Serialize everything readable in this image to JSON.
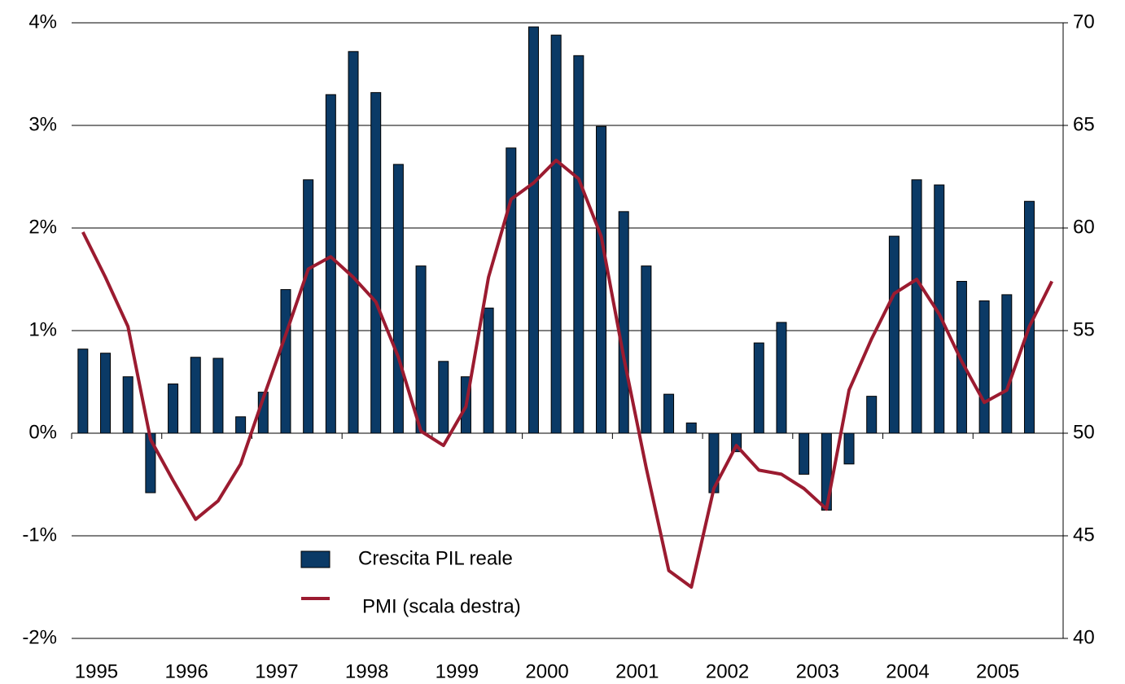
{
  "chart_data": {
    "type": "bar",
    "categories": [
      "1995",
      null,
      null,
      null,
      "1996",
      null,
      null,
      null,
      "1997",
      null,
      null,
      null,
      "1998",
      null,
      null,
      null,
      "1999",
      null,
      null,
      null,
      "2000",
      null,
      null,
      null,
      "2001",
      null,
      null,
      null,
      "2002",
      null,
      null,
      null,
      "2003",
      null,
      null,
      null,
      "2004",
      null,
      null,
      null,
      "2005",
      null,
      null,
      null
    ],
    "series": [
      {
        "name": "Crescita PIL reale",
        "type": "bar",
        "color": "#0b3a66",
        "values": [
          0.82,
          0.78,
          0.55,
          -0.58,
          0.48,
          0.74,
          0.73,
          0.16,
          0.4,
          1.4,
          2.47,
          3.3,
          3.72,
          3.32,
          2.62,
          1.63,
          0.7,
          0.55,
          1.22,
          2.78,
          3.96,
          3.88,
          3.68,
          2.99,
          2.16,
          1.63,
          0.38,
          0.1,
          -0.58,
          -0.18,
          0.88,
          1.08,
          -0.4,
          -0.75,
          -0.3,
          0.36,
          1.92,
          2.47,
          2.42,
          1.48,
          1.29,
          1.35,
          2.26,
          null
        ]
      },
      {
        "name": "PMI (scala destra)",
        "type": "line",
        "axis": "y2",
        "color": "#9b1b30",
        "values": [
          59.8,
          57.6,
          55.2,
          49.7,
          47.7,
          45.8,
          46.7,
          48.5,
          51.7,
          54.8,
          58.0,
          58.6,
          57.6,
          56.4,
          53.7,
          50.1,
          49.4,
          51.3,
          57.6,
          61.4,
          62.2,
          63.3,
          62.4,
          59.6,
          53.7,
          48.3,
          43.3,
          42.5,
          47.3,
          49.4,
          48.2,
          48.0,
          47.3,
          46.3,
          52.1,
          54.6,
          56.8,
          57.5,
          55.8,
          53.5,
          51.5,
          52.1,
          55.2,
          57.4
        ]
      }
    ],
    "ylim": [
      -2,
      4
    ],
    "yticks": [
      {
        "value": -2,
        "label": "-2%"
      },
      {
        "value": -1,
        "label": "-1%"
      },
      {
        "value": 0,
        "label": "0%"
      },
      {
        "value": 1,
        "label": "1%"
      },
      {
        "value": 2,
        "label": "2%"
      },
      {
        "value": 3,
        "label": "3%"
      },
      {
        "value": 4,
        "label": "4%"
      }
    ],
    "y2lim": [
      40,
      70
    ],
    "y2ticks": [
      40,
      45,
      50,
      55,
      60,
      65,
      70
    ],
    "grid": true
  }
}
